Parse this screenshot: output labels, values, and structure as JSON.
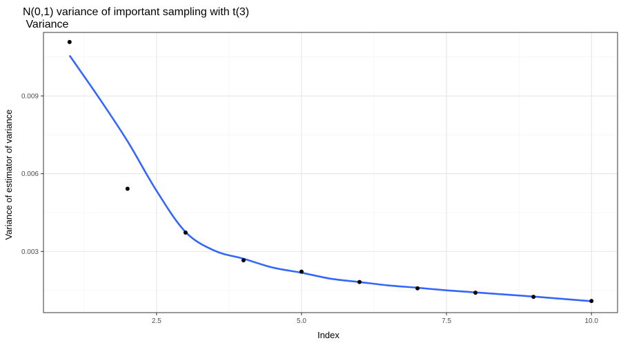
{
  "chart_data": {
    "type": "scatter",
    "title": "N(0,1) variance of important sampling with t(3)",
    "subtitle": " Variance",
    "xlabel": "Index",
    "ylabel": "Variance of estimator of variance",
    "xlim": [
      0.55,
      10.45
    ],
    "ylim": [
      0.00064,
      0.01145
    ],
    "x_ticks": [
      {
        "value": 2.5,
        "label": "2.5"
      },
      {
        "value": 5.0,
        "label": "5.0"
      },
      {
        "value": 7.5,
        "label": "7.5"
      },
      {
        "value": 10.0,
        "label": "10.0"
      }
    ],
    "x_minor_ticks": [
      1.25,
      3.75,
      6.25,
      8.75
    ],
    "y_ticks": [
      {
        "value": 0.003,
        "label": "0.003"
      },
      {
        "value": 0.006,
        "label": "0.006"
      },
      {
        "value": 0.009,
        "label": "0.009"
      }
    ],
    "y_minor_ticks": [
      0.0015,
      0.0045,
      0.0075,
      0.0105
    ],
    "grid": true,
    "series": [
      {
        "kind": "points",
        "color": "#000000",
        "x": [
          1,
          2,
          3,
          4,
          5,
          6,
          7,
          8,
          9,
          10
        ],
        "y": [
          0.01108,
          0.00542,
          0.00373,
          0.00266,
          0.00222,
          0.00182,
          0.00158,
          0.00141,
          0.00125,
          0.00109
        ]
      },
      {
        "kind": "smooth",
        "color": "#3366FF",
        "x": [
          1.0,
          1.5,
          2.0,
          2.5,
          3.0,
          3.5,
          4.0,
          4.5,
          5.0,
          5.5,
          6.0,
          6.5,
          7.0,
          7.5,
          8.0,
          8.5,
          9.0,
          9.5,
          10.0
        ],
        "y": [
          0.01056,
          0.00895,
          0.00725,
          0.00534,
          0.00375,
          0.00303,
          0.00272,
          0.00238,
          0.00218,
          0.00195,
          0.00182,
          0.00169,
          0.0016,
          0.0015,
          0.00142,
          0.00134,
          0.00126,
          0.00117,
          0.00108
        ]
      }
    ]
  }
}
